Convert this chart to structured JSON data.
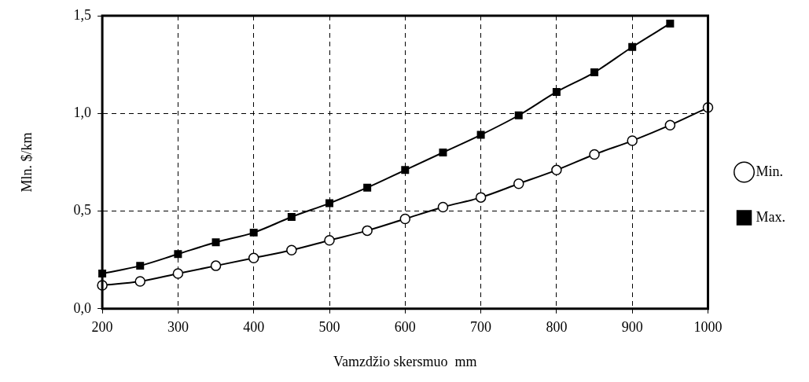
{
  "chart_data": {
    "type": "line",
    "xlabel": "Vamzdžio skersmuo  mm",
    "ylabel": "Mln. $/km",
    "x": [
      200,
      250,
      300,
      350,
      400,
      450,
      500,
      550,
      600,
      650,
      700,
      750,
      800,
      850,
      900,
      950,
      1000
    ],
    "series": [
      {
        "name": "Min.",
        "color": "#000000",
        "marker": "circle",
        "values": [
          0.12,
          0.14,
          0.18,
          0.22,
          0.26,
          0.3,
          0.35,
          0.4,
          0.46,
          0.52,
          0.57,
          0.64,
          0.71,
          0.79,
          0.86,
          0.94,
          1.03
        ]
      },
      {
        "name": "Max.",
        "color": "#000000",
        "marker": "square",
        "values": [
          0.18,
          0.22,
          0.28,
          0.34,
          0.39,
          0.47,
          0.54,
          0.62,
          0.71,
          0.8,
          0.89,
          0.99,
          1.11,
          1.21,
          1.34,
          1.46,
          null
        ]
      }
    ],
    "xlim": [
      200,
      1000
    ],
    "xticks": [
      200,
      300,
      400,
      500,
      600,
      700,
      800,
      900,
      1000
    ],
    "ylim": [
      0,
      1.5
    ],
    "yticks": [
      {
        "value": 0,
        "label": "0,0"
      },
      {
        "value": 0.5,
        "label": "0,5"
      },
      {
        "value": 1.0,
        "label": "1,0"
      },
      {
        "value": 1.5,
        "label": "1,5"
      }
    ],
    "grid": true,
    "legend": "right",
    "line_style": "solid"
  }
}
